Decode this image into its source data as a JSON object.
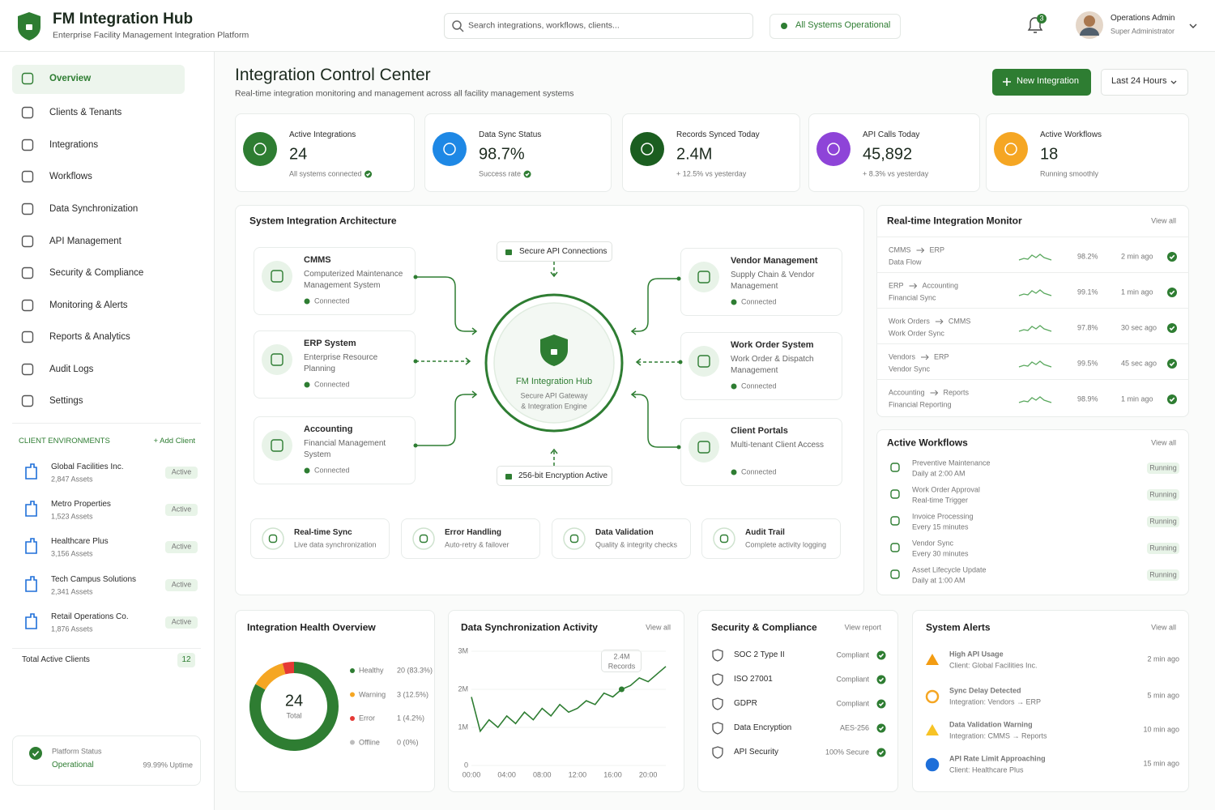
{
  "header": {
    "title": "FM Integration Hub",
    "subtitle": "Enterprise Facility Management Integration Platform",
    "search": "Search integrations, workflows, clients...",
    "system_status": "All Systems Operational",
    "notifications": "3",
    "user": "Operations Admin",
    "role": "Super Administrator"
  },
  "sidebar": {
    "nav": [
      "Overview",
      "Clients & Tenants",
      "Integrations",
      "Workflows",
      "Data Synchronization",
      "API Management",
      "Security & Compliance",
      "Monitoring & Alerts",
      "Reports & Analytics",
      "Audit Logs",
      "Settings"
    ],
    "environments_title": "CLIENT ENVIRONMENTS",
    "add_client": "+ Add Client",
    "clients": [
      {
        "name": "Global Facilities Inc.",
        "assets": "2,847 Assets",
        "status": "Active"
      },
      {
        "name": "Metro Properties",
        "assets": "1,523 Assets",
        "status": "Active"
      },
      {
        "name": "Healthcare Plus",
        "assets": "3,156 Assets",
        "status": "Active"
      },
      {
        "name": "Tech Campus Solutions",
        "assets": "2,341 Assets",
        "status": "Active"
      },
      {
        "name": "Retail Operations Co.",
        "assets": "1,876 Assets",
        "status": "Active"
      }
    ],
    "total_label": "Total Active Clients",
    "total": "12",
    "platform": {
      "title": "Platform Status",
      "status": "Operational",
      "uptime": "99.99% Uptime"
    }
  },
  "page": {
    "title": "Integration Control Center",
    "subtitle": "Real-time integration monitoring and management across all facility management systems",
    "new_button": "New Integration",
    "range": "Last 24 Hours"
  },
  "kpis": [
    {
      "label": "Active Integrations",
      "value": "24",
      "note": "All systems connected"
    },
    {
      "label": "Data Sync Status",
      "value": "98.7%",
      "note": "Success rate"
    },
    {
      "label": "Records Synced Today",
      "value": "2.4M",
      "note": "+ 12.5% vs yesterday"
    },
    {
      "label": "API Calls Today",
      "value": "45,892",
      "note": "+ 8.3% vs yesterday"
    },
    {
      "label": "Active Workflows",
      "value": "18",
      "note": "Running smoothly"
    }
  ],
  "architecture": {
    "title": "System Integration Architecture",
    "top_badge": "Secure API Connections",
    "bottom_badge": "256-bit Encryption Active",
    "hub": {
      "title": "FM Integration Hub",
      "lines": [
        "Secure API Gateway",
        "& Integration Engine"
      ]
    },
    "systems": [
      {
        "name": "CMMS",
        "desc": "Computerized Maintenance Management System",
        "status": "Connected"
      },
      {
        "name": "ERP System",
        "desc": "Enterprise Resource Planning",
        "status": "Connected"
      },
      {
        "name": "Accounting",
        "desc": "Financial Management System",
        "status": "Connected"
      },
      {
        "name": "Vendor Management",
        "desc": "Supply Chain & Vendor Management",
        "status": "Connected"
      },
      {
        "name": "Work Order System",
        "desc": "Work Order & Dispatch Management",
        "status": "Connected"
      },
      {
        "name": "Client Portals",
        "desc": "Multi-tenant Client Access",
        "status": "Connected"
      }
    ],
    "features": [
      {
        "title": "Real-time Sync",
        "desc": "Live data synchronization"
      },
      {
        "title": "Error Handling",
        "desc": "Auto-retry & failover"
      },
      {
        "title": "Data Validation",
        "desc": "Quality & integrity checks"
      },
      {
        "title": "Audit Trail",
        "desc": "Complete activity logging"
      }
    ]
  },
  "monitor": {
    "title": "Real-time Integration Monitor",
    "link": "View all",
    "rows": [
      {
        "from": "CMMS",
        "to": "ERP",
        "type": "Data Flow",
        "rate": "98.2%",
        "time": "2 min ago"
      },
      {
        "from": "ERP",
        "to": "Accounting",
        "type": "Financial Sync",
        "rate": "99.1%",
        "time": "1 min ago"
      },
      {
        "from": "Work Orders",
        "to": "CMMS",
        "type": "Work Order Sync",
        "rate": "97.8%",
        "time": "30 sec ago"
      },
      {
        "from": "Vendors",
        "to": "ERP",
        "type": "Vendor Sync",
        "rate": "99.5%",
        "time": "45 sec ago"
      },
      {
        "from": "Accounting",
        "to": "Reports",
        "type": "Financial Reporting",
        "rate": "98.9%",
        "time": "1 min ago"
      }
    ]
  },
  "workflows": {
    "title": "Active Workflows",
    "link": "View all",
    "items": [
      {
        "name": "Preventive Maintenance",
        "schedule": "Daily at 2:00 AM",
        "status": "Running"
      },
      {
        "name": "Work Order Approval",
        "schedule": "Real-time Trigger",
        "status": "Running"
      },
      {
        "name": "Invoice Processing",
        "schedule": "Every 15 minutes",
        "status": "Running"
      },
      {
        "name": "Vendor Sync",
        "schedule": "Every 30 minutes",
        "status": "Running"
      },
      {
        "name": "Asset Lifecycle Update",
        "schedule": "Daily at 1:00 AM",
        "status": "Running"
      }
    ]
  },
  "security": {
    "title": "Security & Compliance",
    "link": "View report",
    "items": [
      {
        "name": "SOC 2 Type II",
        "status": "Compliant"
      },
      {
        "name": "ISO 27001",
        "status": "Compliant"
      },
      {
        "name": "GDPR",
        "status": "Compliant"
      },
      {
        "name": "Data Encryption",
        "status": "AES-256"
      },
      {
        "name": "API Security",
        "status": "100% Secure"
      }
    ]
  },
  "alerts": {
    "title": "System Alerts",
    "link": "View all",
    "items": [
      {
        "title": "High API Usage",
        "detail": "Client: Global Facilities Inc.",
        "time": "2 min ago"
      },
      {
        "title": "Sync Delay Detected",
        "detail": "Integration: Vendors → ERP",
        "time": "5 min ago"
      },
      {
        "title": "Data Validation Warning",
        "detail": "Integration: CMMS → Reports",
        "time": "10 min ago"
      },
      {
        "title": "API Rate Limit Approaching",
        "detail": "Client: Healthcare Plus",
        "time": "15 min ago"
      }
    ]
  },
  "chart_data": [
    {
      "type": "donut",
      "title": "Integration Health Overview",
      "categories": [
        "Healthy",
        "Warning",
        "Error",
        "Offline"
      ],
      "values": [
        20,
        3,
        1,
        0
      ],
      "value_labels": [
        "20 (83.3%)",
        "3 (12.5%)",
        "1 (4.2%)",
        "0 (0%)"
      ],
      "colors": [
        "#2e7d32",
        "#f5a623",
        "#e53935",
        "#bdbdbd"
      ],
      "center_value": "24",
      "center_label": "Total"
    },
    {
      "type": "line",
      "title": "Data Synchronization Activity",
      "link": "View all",
      "x": [
        0,
        1,
        2,
        3,
        4,
        5,
        6,
        7,
        8,
        9,
        10,
        11,
        12,
        13,
        14,
        15,
        16,
        17,
        18,
        19,
        20,
        21,
        22
      ],
      "xlim": [
        0,
        22
      ],
      "xticks": [
        {
          "value": 0,
          "label": "00:00"
        },
        {
          "value": 4,
          "label": "04:00"
        },
        {
          "value": 8,
          "label": "08:00"
        },
        {
          "value": 12,
          "label": "12:00"
        },
        {
          "value": 16,
          "label": "16:00"
        },
        {
          "value": 20,
          "label": "20:00"
        }
      ],
      "ylim": [
        0,
        3000000
      ],
      "yticks": [
        0,
        {
          "value": 1000000,
          "label": "1M"
        },
        {
          "value": 2000000,
          "label": "2M"
        },
        {
          "value": 3000000,
          "label": "3M"
        }
      ],
      "grid": true,
      "series": [
        {
          "name": "Records",
          "color": "#2e7d32",
          "values": [
            1800000,
            900000,
            1200000,
            1000000,
            1300000,
            1100000,
            1400000,
            1200000,
            1500000,
            1300000,
            1600000,
            1400000,
            1500000,
            1700000,
            1600000,
            1900000,
            1800000,
            2000000,
            2100000,
            2300000,
            2200000,
            2400000,
            2600000
          ]
        }
      ],
      "annotation": "2.4M",
      "annotation_x": 17
    }
  ]
}
